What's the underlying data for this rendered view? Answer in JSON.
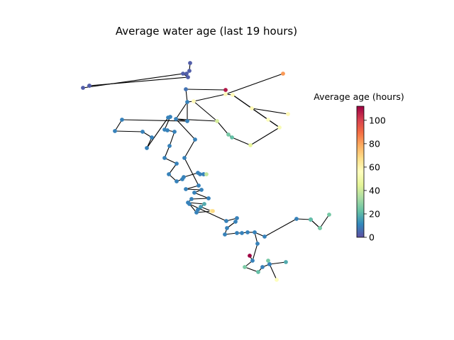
{
  "title": "Average water age (last 19 hours)",
  "colorbar": {
    "label": "Average age (hours)",
    "min": 0,
    "max": 112,
    "ticks": [
      0,
      20,
      40,
      60,
      80,
      100
    ],
    "colormap": "Spectral_r"
  },
  "network": {
    "nodes": [
      {
        "id": "n1",
        "age": 3
      },
      {
        "id": "n2",
        "age": 3
      },
      {
        "id": "n3",
        "age": 3
      },
      {
        "id": "n4",
        "age": 3
      },
      {
        "id": "n5",
        "age": 3
      },
      {
        "id": "n6",
        "age": 3
      },
      {
        "id": "n7",
        "age": 3
      },
      {
        "id": "n8",
        "age": 3
      },
      {
        "id": "n9",
        "age": 7
      },
      {
        "id": "n10",
        "age": 10
      },
      {
        "id": "n11",
        "age": 58
      },
      {
        "id": "n12",
        "age": 108
      },
      {
        "id": "n13",
        "age": 58
      },
      {
        "id": "n14",
        "age": 58
      },
      {
        "id": "n15",
        "age": 82
      },
      {
        "id": "n16",
        "age": 58
      },
      {
        "id": "n17",
        "age": 58
      },
      {
        "id": "n18",
        "age": 55
      },
      {
        "id": "n19",
        "age": 53
      },
      {
        "id": "n20",
        "age": 42
      },
      {
        "id": "n21",
        "age": 25
      },
      {
        "id": "n22",
        "age": 22
      },
      {
        "id": "n23",
        "age": 45
      },
      {
        "id": "n24",
        "age": 10
      },
      {
        "id": "n25",
        "age": 10
      },
      {
        "id": "n26",
        "age": 10
      },
      {
        "id": "n27",
        "age": 10
      },
      {
        "id": "n28",
        "age": 10
      },
      {
        "id": "n29",
        "age": 10
      },
      {
        "id": "n30",
        "age": 10
      },
      {
        "id": "n31",
        "age": 10
      },
      {
        "id": "n32",
        "age": 10
      },
      {
        "id": "n33",
        "age": 10
      },
      {
        "id": "n34",
        "age": 10
      },
      {
        "id": "n35",
        "age": 10
      },
      {
        "id": "n36",
        "age": 10
      },
      {
        "id": "n37",
        "age": 10
      },
      {
        "id": "n38",
        "age": 10
      },
      {
        "id": "n39",
        "age": 10
      },
      {
        "id": "n40",
        "age": 10
      },
      {
        "id": "n41",
        "age": 10
      },
      {
        "id": "n42",
        "age": 10
      },
      {
        "id": "n43",
        "age": 10
      },
      {
        "id": "n44",
        "age": 10
      },
      {
        "id": "n45",
        "age": 10
      },
      {
        "id": "n46",
        "age": 10
      },
      {
        "id": "n47",
        "age": 38
      },
      {
        "id": "n48",
        "age": 10
      },
      {
        "id": "n49",
        "age": 10
      },
      {
        "id": "n50",
        "age": 10
      },
      {
        "id": "n51",
        "age": 10
      },
      {
        "id": "n52",
        "age": 10
      },
      {
        "id": "n53",
        "age": 10
      },
      {
        "id": "n54",
        "age": 10
      },
      {
        "id": "n55",
        "age": 10
      },
      {
        "id": "n56",
        "age": 10
      },
      {
        "id": "n57",
        "age": 18
      },
      {
        "id": "n58",
        "age": 10
      },
      {
        "id": "n59",
        "age": 15
      },
      {
        "id": "n60",
        "age": 62
      },
      {
        "id": "n61",
        "age": 68
      },
      {
        "id": "n62",
        "age": 10
      },
      {
        "id": "n63",
        "age": 10
      },
      {
        "id": "n64",
        "age": 10
      },
      {
        "id": "n65",
        "age": 10
      },
      {
        "id": "n66",
        "age": 10
      },
      {
        "id": "n67",
        "age": 10
      },
      {
        "id": "n68",
        "age": 10
      },
      {
        "id": "n69",
        "age": 10
      },
      {
        "id": "n70",
        "age": 10
      },
      {
        "id": "n71",
        "age": 10
      },
      {
        "id": "n72",
        "age": 10
      },
      {
        "id": "n73",
        "age": 10
      },
      {
        "id": "n74",
        "age": 10
      },
      {
        "id": "n75",
        "age": 10
      },
      {
        "id": "n76",
        "age": 10
      },
      {
        "id": "n77",
        "age": 14
      },
      {
        "id": "n78",
        "age": 25
      },
      {
        "id": "n79",
        "age": 22
      },
      {
        "id": "n80",
        "age": 26
      },
      {
        "id": "n81",
        "age": 10
      },
      {
        "id": "n82",
        "age": 10
      },
      {
        "id": "n83",
        "age": 112
      },
      {
        "id": "n84",
        "age": 26
      },
      {
        "id": "n85",
        "age": 22
      },
      {
        "id": "n86",
        "age": 10
      },
      {
        "id": "n87",
        "age": 10
      },
      {
        "id": "n88",
        "age": 18
      },
      {
        "id": "n89",
        "age": 10
      },
      {
        "id": "n90",
        "age": 25
      },
      {
        "id": "n91",
        "age": 55
      }
    ],
    "links": [
      [
        "n1",
        "n2"
      ],
      [
        "n2",
        "n3"
      ],
      [
        "n3",
        "n4"
      ],
      [
        "n4",
        "n5"
      ],
      [
        "n5",
        "n6"
      ],
      [
        "n4",
        "n7"
      ],
      [
        "n7",
        "n8"
      ],
      [
        "n9",
        "n10"
      ],
      [
        "n10",
        "n11"
      ],
      [
        "n10",
        "n24"
      ],
      [
        "n11",
        "n13"
      ],
      [
        "n13",
        "n14"
      ],
      [
        "n13",
        "n15"
      ],
      [
        "n14",
        "n19"
      ],
      [
        "n14",
        "n16"
      ],
      [
        "n16",
        "n17"
      ],
      [
        "n16",
        "n18"
      ],
      [
        "n18",
        "n19"
      ],
      [
        "n19",
        "n23"
      ],
      [
        "n23",
        "n22"
      ],
      [
        "n22",
        "n21"
      ],
      [
        "n21",
        "n20"
      ],
      [
        "n20",
        "n25"
      ],
      [
        "n11",
        "n20"
      ],
      [
        "n10",
        "n25"
      ],
      [
        "n9",
        "n12"
      ],
      [
        "n25",
        "n24"
      ],
      [
        "n24",
        "n26"
      ],
      [
        "n26",
        "n27"
      ],
      [
        "n27",
        "n28"
      ],
      [
        "n28",
        "n29"
      ],
      [
        "n29",
        "n30"
      ],
      [
        "n30",
        "n31"
      ],
      [
        "n31",
        "n32"
      ],
      [
        "n32",
        "n33"
      ],
      [
        "n33",
        "n34"
      ],
      [
        "n34",
        "n35"
      ],
      [
        "n35",
        "n36"
      ],
      [
        "n36",
        "n37"
      ],
      [
        "n37",
        "n38"
      ],
      [
        "n38",
        "n39"
      ],
      [
        "n39",
        "n40"
      ],
      [
        "n40",
        "n41"
      ],
      [
        "n41",
        "n42"
      ],
      [
        "n42",
        "n43"
      ],
      [
        "n43",
        "n44"
      ],
      [
        "n44",
        "n45"
      ],
      [
        "n45",
        "n46"
      ],
      [
        "n46",
        "n47"
      ],
      [
        "n25",
        "n48"
      ],
      [
        "n48",
        "n49"
      ],
      [
        "n49",
        "n50"
      ],
      [
        "n50",
        "n51"
      ],
      [
        "n51",
        "n52"
      ],
      [
        "n52",
        "n53"
      ],
      [
        "n53",
        "n54"
      ],
      [
        "n54",
        "n55"
      ],
      [
        "n55",
        "n56"
      ],
      [
        "n56",
        "n57"
      ],
      [
        "n57",
        "n58"
      ],
      [
        "n58",
        "n59"
      ],
      [
        "n59",
        "n60"
      ],
      [
        "n60",
        "n61"
      ],
      [
        "n61",
        "n62"
      ],
      [
        "n62",
        "n63"
      ],
      [
        "n63",
        "n64"
      ],
      [
        "n64",
        "n65"
      ],
      [
        "n65",
        "n66"
      ],
      [
        "n66",
        "n67"
      ],
      [
        "n67",
        "n68"
      ],
      [
        "n68",
        "n69"
      ],
      [
        "n69",
        "n70"
      ],
      [
        "n70",
        "n71"
      ],
      [
        "n71",
        "n72"
      ],
      [
        "n72",
        "n73"
      ],
      [
        "n73",
        "n74"
      ],
      [
        "n74",
        "n75"
      ],
      [
        "n75",
        "n76"
      ],
      [
        "n76",
        "n77"
      ],
      [
        "n77",
        "n78"
      ],
      [
        "n76",
        "n79"
      ],
      [
        "n79",
        "n80"
      ],
      [
        "n72",
        "n81"
      ],
      [
        "n81",
        "n82"
      ],
      [
        "n82",
        "n83"
      ],
      [
        "n82",
        "n84"
      ],
      [
        "n84",
        "n85"
      ],
      [
        "n85",
        "n86"
      ],
      [
        "n86",
        "n87"
      ],
      [
        "n87",
        "n88"
      ],
      [
        "n87",
        "n89"
      ],
      [
        "n89",
        "n90"
      ],
      [
        "n89",
        "n91"
      ]
    ]
  }
}
